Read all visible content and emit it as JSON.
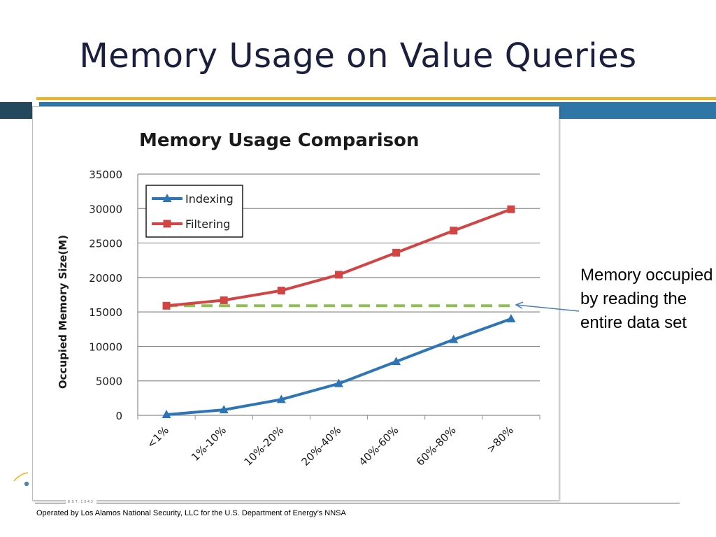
{
  "slide": {
    "title": "Memory Usage on Value Queries",
    "annotation": "Memory occupied by reading the entire data set",
    "footer": "Operated by Los Alamos National Security, LLC for the U.S. Department of Energy’s NNSA",
    "est": "EST.1943"
  },
  "colors": {
    "title": "#1a1f3d",
    "band_dark": "#24485c",
    "band_blue": "#2f76a7",
    "gold": "#f2b21a",
    "indexing": "#2e75b6",
    "filtering": "#d24545",
    "reference": "#8dc04e"
  },
  "chart_data": {
    "type": "line",
    "title": "Memory Usage Comparison",
    "xlabel": "",
    "ylabel": "Occupied Memory Size(M)",
    "categories": [
      "<1%",
      "1%-10%",
      "10%-20%",
      "20%-40%",
      "40%-60%",
      "60%-80%",
      ">80%"
    ],
    "series": [
      {
        "name": "Indexing",
        "marker": "triangle",
        "color": "#2e75b6",
        "values": [
          100,
          800,
          2300,
          4600,
          7800,
          11000,
          14000
        ]
      },
      {
        "name": "Filtering",
        "marker": "square",
        "color": "#d24545",
        "values": [
          15900,
          16700,
          18100,
          20400,
          23600,
          26800,
          29900
        ]
      }
    ],
    "reference_line": {
      "value": 15900,
      "style": "dashed",
      "color": "#8dc04e"
    },
    "ylim": [
      0,
      35000
    ],
    "yticks": [
      0,
      5000,
      10000,
      15000,
      20000,
      25000,
      30000,
      35000
    ],
    "grid": true,
    "legend": "top-left"
  }
}
